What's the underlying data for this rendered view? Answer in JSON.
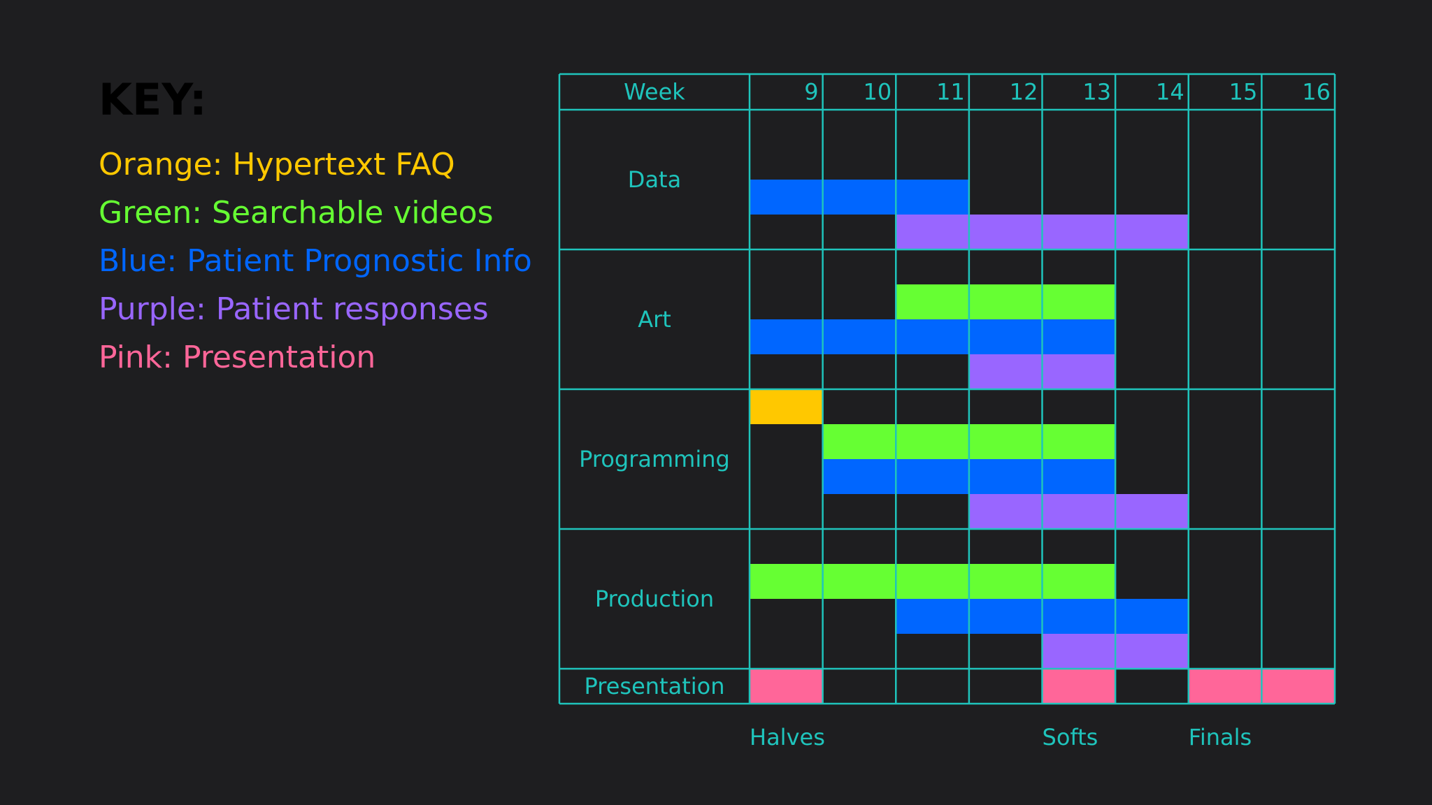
{
  "colors": {
    "background": "#1e1e20",
    "grid": "#1fc4bc",
    "text": "#1fc4bc",
    "orange": "#ffc800",
    "green": "#66ff33",
    "blue": "#0066ff",
    "purple": "#9966ff",
    "pink": "#ff6699"
  },
  "key": {
    "title": "KEY:",
    "items": [
      {
        "label": "Orange: Hypertext FAQ",
        "color": "#ffc800"
      },
      {
        "label": "Green: Searchable videos",
        "color": "#66ff33"
      },
      {
        "label": "Blue: Patient Prognostic Info",
        "color": "#0066ff"
      },
      {
        "label": "Purple: Patient responses",
        "color": "#9966ff"
      },
      {
        "label": "Pink: Presentation",
        "color": "#ff6699"
      }
    ]
  },
  "chart_data": {
    "type": "gantt",
    "header_label": "Week",
    "weeks": [
      "9",
      "10",
      "11",
      "12",
      "13",
      "14",
      "15",
      "16"
    ],
    "milestones": [
      {
        "label": "Halves",
        "week": "9"
      },
      {
        "label": "Softs",
        "week": "13"
      },
      {
        "label": "Finals",
        "week": "15"
      }
    ],
    "groups": [
      {
        "name": "Data",
        "lanes": 4,
        "bars": [
          {
            "category": "Blue",
            "lane": 2,
            "start_week": 9,
            "end_week": 11
          },
          {
            "category": "Purple",
            "lane": 3,
            "start_week": 11,
            "end_week": 14
          }
        ]
      },
      {
        "name": "Art",
        "lanes": 4,
        "bars": [
          {
            "category": "Green",
            "lane": 1,
            "start_week": 11,
            "end_week": 13
          },
          {
            "category": "Blue",
            "lane": 2,
            "start_week": 9,
            "end_week": 13
          },
          {
            "category": "Purple",
            "lane": 3,
            "start_week": 12,
            "end_week": 13
          }
        ]
      },
      {
        "name": "Programming",
        "lanes": 4,
        "bars": [
          {
            "category": "Orange",
            "lane": 0,
            "start_week": 9,
            "end_week": 9
          },
          {
            "category": "Green",
            "lane": 1,
            "start_week": 10,
            "end_week": 13
          },
          {
            "category": "Blue",
            "lane": 2,
            "start_week": 10,
            "end_week": 13
          },
          {
            "category": "Purple",
            "lane": 3,
            "start_week": 12,
            "end_week": 14
          }
        ]
      },
      {
        "name": "Production",
        "lanes": 4,
        "bars": [
          {
            "category": "Green",
            "lane": 1,
            "start_week": 9,
            "end_week": 13
          },
          {
            "category": "Blue",
            "lane": 2,
            "start_week": 11,
            "end_week": 14
          },
          {
            "category": "Purple",
            "lane": 3,
            "start_week": 13,
            "end_week": 14
          }
        ]
      },
      {
        "name": "Presentation",
        "lanes": 1,
        "bars": [
          {
            "category": "Pink",
            "lane": 0,
            "start_week": 9,
            "end_week": 9
          },
          {
            "category": "Pink",
            "lane": 0,
            "start_week": 13,
            "end_week": 13
          },
          {
            "category": "Pink",
            "lane": 0,
            "start_week": 15,
            "end_week": 16
          }
        ]
      }
    ]
  }
}
